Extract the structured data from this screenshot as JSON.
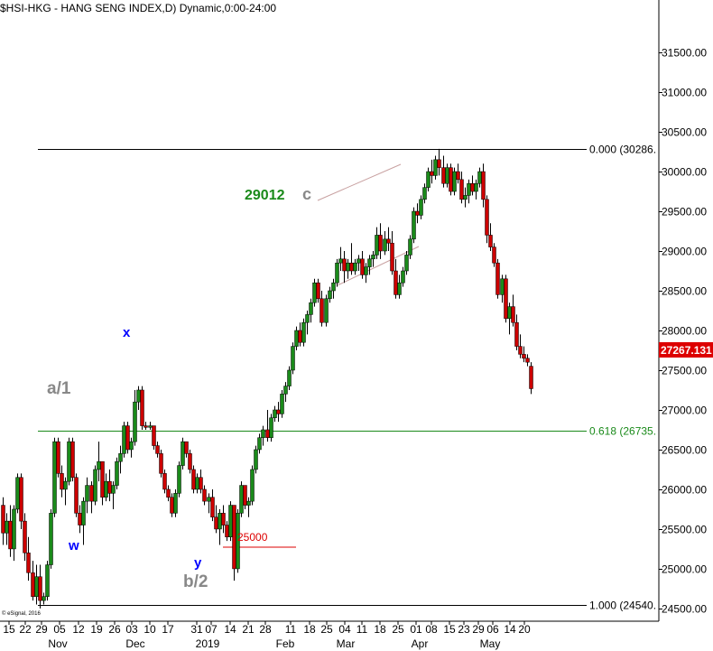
{
  "header": {
    "title": "$HSI-HKG - HANG SENG INDEX,D) Dynamic,0:00-24:00"
  },
  "footer": {
    "copyright": "© eSignal, 2016"
  },
  "chart_data": {
    "type": "candlestick",
    "y_axis": {
      "ticks": [
        24500,
        25000,
        25500,
        26000,
        26500,
        27000,
        27500,
        28000,
        28500,
        29000,
        29500,
        30000,
        30500,
        31000,
        31500
      ],
      "tick_labels": [
        "24500.00",
        "25000.00",
        "25500.00",
        "26000.00",
        "26500.00",
        "27000.00",
        "27500.00",
        "28000.00",
        "28500.00",
        "29000.00",
        "29500.00",
        "30000.00",
        "30500.00",
        "31000.00",
        "31500.00"
      ],
      "range": [
        24340,
        32160
      ]
    },
    "last_price": {
      "value": 27267.131,
      "label": "27267.131",
      "color": "#dd0000"
    },
    "x_axis": {
      "day_labels": [
        "15",
        "22",
        "29",
        "05",
        "12",
        "19",
        "26",
        "03",
        "10",
        "17",
        "31",
        "07",
        "14",
        "21",
        "28",
        "11",
        "18",
        "25",
        "04",
        "11",
        "18",
        "25",
        "01",
        "08",
        "15",
        "23",
        "29",
        "06",
        "14",
        "20"
      ],
      "month_labels": [
        "Nov",
        "Dec",
        "2019",
        "Feb",
        "Mar",
        "Apr",
        "May"
      ]
    },
    "fib_levels": [
      {
        "value": 30286,
        "label": "0.000 (30286.",
        "color": "#000000"
      },
      {
        "value": 26735,
        "label": "0.618 (26735.",
        "color": "#1a8a1a"
      },
      {
        "value": 24540,
        "label": "1.000 (24540.",
        "color": "#000000"
      }
    ],
    "annotations": [
      {
        "text": "a/1",
        "color": "#888888"
      },
      {
        "text": "x",
        "color": "#0000ff"
      },
      {
        "text": "w",
        "color": "#0000ff"
      },
      {
        "text": "y",
        "color": "#0000ff"
      },
      {
        "text": "b/2",
        "color": "#888888"
      },
      {
        "text": "29012",
        "color": "#1a8a1a"
      },
      {
        "text": "c",
        "color": "#888888"
      },
      {
        "text": "25000",
        "color": "#dd0000"
      }
    ],
    "series": [
      {
        "type": "ohlc",
        "up_color": "#1a8a1a",
        "down_color": "#cc0000",
        "ohlc": [
          [
            25800,
            25900,
            25300,
            25450
          ],
          [
            25450,
            25700,
            25300,
            25600
          ],
          [
            25600,
            25800,
            25150,
            25250
          ],
          [
            25250,
            25800,
            25100,
            25750
          ],
          [
            25750,
            26200,
            25700,
            26150
          ],
          [
            26150,
            26200,
            25500,
            25600
          ],
          [
            25600,
            25700,
            25100,
            25200
          ],
          [
            25200,
            25400,
            24850,
            24950
          ],
          [
            24950,
            25100,
            24600,
            24650
          ],
          [
            24650,
            25050,
            24550,
            24900
          ],
          [
            24900,
            25050,
            24500,
            24600
          ],
          [
            24600,
            24700,
            24550,
            24650
          ],
          [
            24650,
            25100,
            24600,
            25050
          ],
          [
            25050,
            25750,
            25000,
            25700
          ],
          [
            25700,
            26650,
            25650,
            26600
          ],
          [
            26600,
            26650,
            26150,
            26200
          ],
          [
            26200,
            26300,
            25900,
            26000
          ],
          [
            26000,
            26150,
            25800,
            26100
          ],
          [
            26100,
            26650,
            26050,
            26600
          ],
          [
            26600,
            26650,
            26100,
            26150
          ],
          [
            26150,
            26200,
            25650,
            25700
          ],
          [
            25700,
            25800,
            25450,
            25550
          ],
          [
            25550,
            25900,
            25300,
            25850
          ],
          [
            25850,
            26150,
            25700,
            26050
          ],
          [
            26050,
            26100,
            25700,
            25850
          ],
          [
            25850,
            26300,
            25800,
            26250
          ],
          [
            26250,
            26600,
            26100,
            26350
          ],
          [
            26350,
            26350,
            25800,
            25900
          ],
          [
            25900,
            26200,
            25850,
            26100
          ],
          [
            26100,
            26250,
            25850,
            25950
          ],
          [
            25950,
            26100,
            25750,
            26050
          ],
          [
            26050,
            26400,
            26000,
            26350
          ],
          [
            26350,
            26550,
            26200,
            26450
          ],
          [
            26450,
            26850,
            26400,
            26800
          ],
          [
            26800,
            26850,
            26450,
            26500
          ],
          [
            26500,
            26650,
            26400,
            26600
          ],
          [
            26600,
            27250,
            26550,
            27100
          ],
          [
            27100,
            27300,
            27000,
            27250
          ],
          [
            27250,
            27300,
            26750,
            26800
          ],
          [
            26800,
            26850,
            26750,
            26780
          ],
          [
            26780,
            26850,
            26750,
            26800
          ],
          [
            26800,
            26800,
            26500,
            26550
          ],
          [
            26550,
            26600,
            26400,
            26450
          ],
          [
            26450,
            26500,
            26150,
            26200
          ],
          [
            26200,
            26250,
            25950,
            26000
          ],
          [
            26000,
            26050,
            25850,
            25900
          ],
          [
            25900,
            25950,
            25650,
            25700
          ],
          [
            25700,
            26000,
            25650,
            25950
          ],
          [
            25950,
            26350,
            25900,
            26300
          ],
          [
            26300,
            26650,
            26250,
            26600
          ],
          [
            26600,
            26600,
            26400,
            26450
          ],
          [
            26450,
            26500,
            26200,
            26250
          ],
          [
            26250,
            26300,
            25950,
            26000
          ],
          [
            26000,
            26200,
            25950,
            26150
          ],
          [
            26150,
            26250,
            25950,
            26000
          ],
          [
            26000,
            26050,
            25800,
            25850
          ],
          [
            25850,
            25950,
            25700,
            25900
          ],
          [
            25900,
            26000,
            25600,
            25650
          ],
          [
            25650,
            25800,
            25450,
            25500
          ],
          [
            25500,
            25750,
            25300,
            25700
          ],
          [
            25700,
            25800,
            25450,
            25550
          ],
          [
            25550,
            25600,
            25350,
            25400
          ],
          [
            25400,
            25850,
            25350,
            25800
          ],
          [
            25800,
            25800,
            24850,
            25000
          ],
          [
            25000,
            25750,
            24950,
            25700
          ],
          [
            25700,
            26100,
            25650,
            26050
          ],
          [
            26050,
            26050,
            25750,
            25800
          ],
          [
            25800,
            25900,
            25650,
            25850
          ],
          [
            25850,
            26300,
            25800,
            26250
          ],
          [
            26250,
            26550,
            26200,
            26500
          ],
          [
            26500,
            26700,
            26450,
            26650
          ],
          [
            26650,
            26800,
            26550,
            26750
          ],
          [
            26750,
            27000,
            26600,
            26650
          ],
          [
            26650,
            26950,
            26600,
            26900
          ],
          [
            26900,
            27050,
            26850,
            27000
          ],
          [
            27000,
            27100,
            26850,
            26950
          ],
          [
            26950,
            27250,
            26900,
            27200
          ],
          [
            27200,
            27350,
            27100,
            27300
          ],
          [
            27300,
            27550,
            27250,
            27500
          ],
          [
            27500,
            27850,
            27450,
            27800
          ],
          [
            27800,
            28050,
            27750,
            28000
          ],
          [
            28000,
            28100,
            27800,
            27850
          ],
          [
            27850,
            28150,
            27800,
            28100
          ],
          [
            28100,
            28250,
            27950,
            28200
          ],
          [
            28200,
            28400,
            28100,
            28350
          ],
          [
            28350,
            28650,
            28300,
            28600
          ],
          [
            28600,
            28650,
            28350,
            28400
          ],
          [
            28400,
            28500,
            28050,
            28100
          ],
          [
            28100,
            28450,
            28050,
            28400
          ],
          [
            28400,
            28550,
            28350,
            28500
          ],
          [
            28500,
            28650,
            28400,
            28600
          ],
          [
            28600,
            28900,
            28550,
            28850
          ],
          [
            28850,
            29050,
            28750,
            28900
          ],
          [
            28900,
            29000,
            28600,
            28750
          ],
          [
            28750,
            28900,
            28650,
            28850
          ],
          [
            28850,
            29100,
            28700,
            28750
          ],
          [
            28750,
            28900,
            28700,
            28850
          ],
          [
            28850,
            28950,
            28750,
            28900
          ],
          [
            28900,
            29000,
            28650,
            28700
          ],
          [
            28700,
            28850,
            28600,
            28800
          ],
          [
            28800,
            28950,
            28700,
            28900
          ],
          [
            28900,
            29000,
            28800,
            28950
          ],
          [
            28950,
            29300,
            28900,
            29200
          ],
          [
            29200,
            29350,
            28900,
            29000
          ],
          [
            29000,
            29250,
            28950,
            29150
          ],
          [
            29150,
            29300,
            29000,
            29100
          ],
          [
            29100,
            29250,
            28700,
            28750
          ],
          [
            28750,
            28900,
            28400,
            28450
          ],
          [
            28450,
            28700,
            28400,
            28600
          ],
          [
            28600,
            28800,
            28550,
            28750
          ],
          [
            28750,
            29000,
            28700,
            28950
          ],
          [
            28950,
            29200,
            28900,
            29150
          ],
          [
            29150,
            29550,
            29100,
            29500
          ],
          [
            29500,
            29600,
            29350,
            29450
          ],
          [
            29450,
            29700,
            29400,
            29650
          ],
          [
            29650,
            29850,
            29600,
            29800
          ],
          [
            29800,
            30050,
            29750,
            30000
          ],
          [
            30000,
            30150,
            29850,
            29950
          ],
          [
            29950,
            30200,
            29900,
            30150
          ],
          [
            30150,
            30286,
            29950,
            30050
          ],
          [
            30050,
            30200,
            29800,
            29850
          ],
          [
            29850,
            30100,
            29800,
            30050
          ],
          [
            30050,
            30100,
            29700,
            29750
          ],
          [
            29750,
            30050,
            29700,
            30000
          ],
          [
            30000,
            30100,
            29850,
            29900
          ],
          [
            29900,
            30000,
            29600,
            29650
          ],
          [
            29650,
            29800,
            29550,
            29700
          ],
          [
            29700,
            29900,
            29600,
            29850
          ],
          [
            29850,
            29950,
            29700,
            29750
          ],
          [
            29750,
            29900,
            29650,
            29850
          ],
          [
            29850,
            30050,
            29800,
            30000
          ],
          [
            30000,
            30100,
            29550,
            29650
          ],
          [
            29650,
            29700,
            29100,
            29200
          ],
          [
            29200,
            29350,
            29000,
            29050
          ],
          [
            29050,
            29100,
            28800,
            28850
          ],
          [
            28850,
            28900,
            28400,
            28450
          ],
          [
            28450,
            28700,
            28350,
            28650
          ],
          [
            28650,
            28700,
            28100,
            28150
          ],
          [
            28150,
            28350,
            27950,
            28300
          ],
          [
            28300,
            28450,
            28050,
            28100
          ],
          [
            28100,
            28200,
            27750,
            27800
          ],
          [
            27800,
            27950,
            27650,
            27700
          ],
          [
            27700,
            27800,
            27600,
            27650
          ],
          [
            27650,
            27700,
            27550,
            27600
          ],
          [
            27550,
            27600,
            27200,
            27267
          ]
        ]
      }
    ],
    "grid": false
  }
}
